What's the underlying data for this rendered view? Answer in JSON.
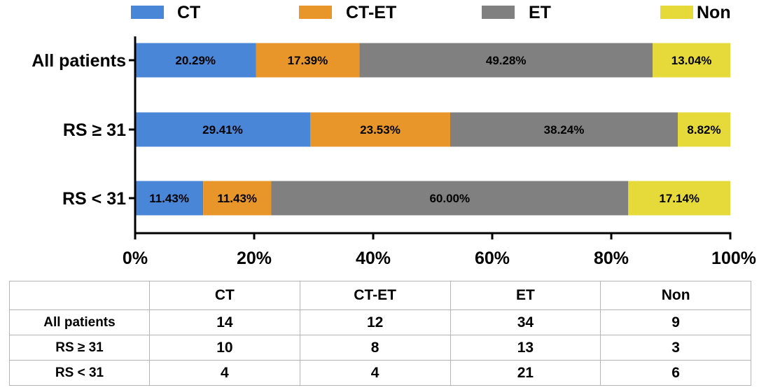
{
  "chart_data": {
    "type": "bar",
    "orientation": "horizontal",
    "stacked": true,
    "percent": true,
    "categories": [
      "All patients",
      "RS ≥ 31",
      "RS < 31"
    ],
    "series": [
      {
        "name": "CT",
        "color": "#4a86d8",
        "values": [
          20.29,
          29.41,
          11.43
        ],
        "labels": [
          "20.29%",
          "29.41%",
          "11.43%"
        ]
      },
      {
        "name": "CT-ET",
        "color": "#e8962a",
        "values": [
          17.39,
          23.53,
          11.43
        ],
        "labels": [
          "17.39%",
          "23.53%",
          "11.43%"
        ]
      },
      {
        "name": "ET",
        "color": "#808080",
        "values": [
          49.28,
          38.24,
          60.0
        ],
        "labels": [
          "49.28%",
          "38.24%",
          "60.00%"
        ]
      },
      {
        "name": "Non",
        "color": "#e5da3a",
        "values": [
          13.04,
          8.82,
          17.14
        ],
        "labels": [
          "13.04%",
          "8.82%",
          "17.14%"
        ]
      }
    ],
    "xlim": [
      0,
      100
    ],
    "xticks": [
      0,
      20,
      40,
      60,
      80,
      100
    ],
    "xtick_labels": [
      "0%",
      "20%",
      "40%",
      "60%",
      "80%",
      "100%"
    ],
    "legend_position": "top",
    "grid": false
  },
  "table": {
    "header": [
      "",
      "CT",
      "CT-ET",
      "ET",
      "Non"
    ],
    "rows": [
      {
        "label": "All patients",
        "cells": [
          "14",
          "12",
          "34",
          "9"
        ]
      },
      {
        "label": "RS ≥ 31",
        "cells": [
          "10",
          "8",
          "13",
          "3"
        ]
      },
      {
        "label": "RS < 31",
        "cells": [
          "4",
          "4",
          "21",
          "6"
        ]
      }
    ]
  }
}
